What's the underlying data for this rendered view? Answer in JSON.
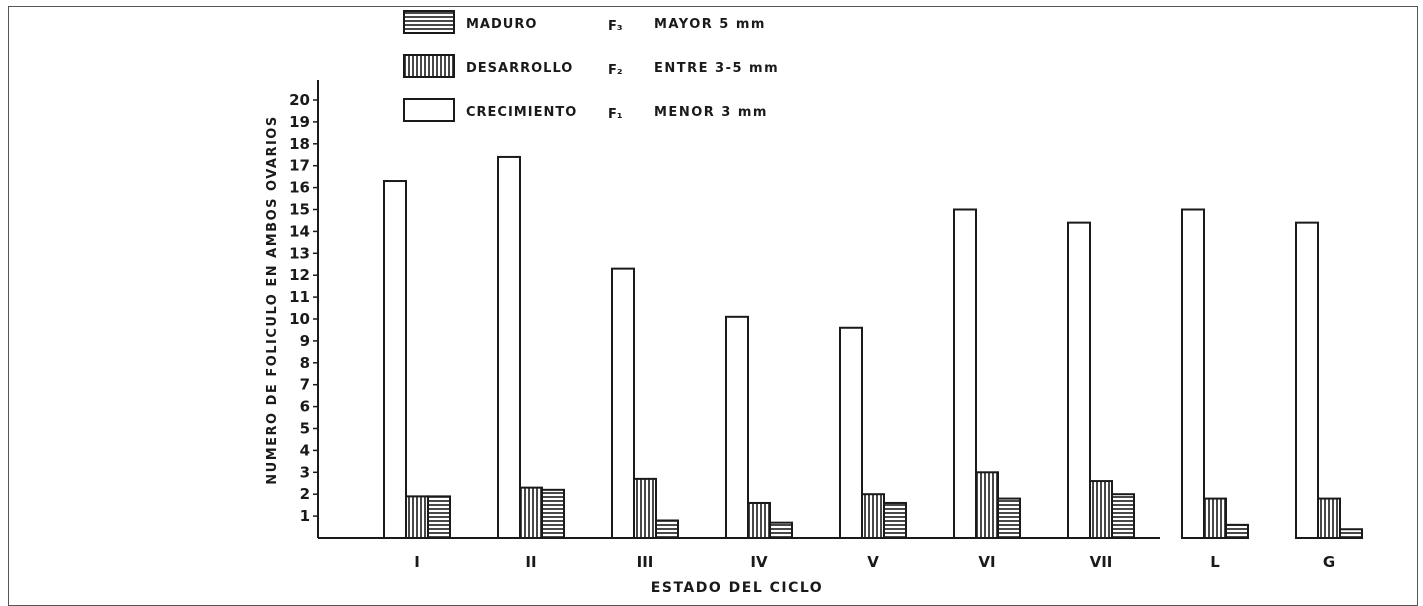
{
  "chart_data": {
    "type": "bar",
    "title": "",
    "xlabel": "ESTADO DEL CICLO",
    "ylabel": "NUMERO DE FOLICULO EN AMBOS OVARIOS",
    "categories": [
      "I",
      "II",
      "III",
      "IV",
      "V",
      "VI",
      "VII",
      "L",
      "G"
    ],
    "yticks": [
      1,
      2,
      3,
      4,
      5,
      6,
      7,
      8,
      9,
      10,
      11,
      12,
      13,
      14,
      15,
      16,
      17,
      18,
      19,
      20
    ],
    "ylim": [
      0,
      20
    ],
    "grid": false,
    "legend_position": "top",
    "series": [
      {
        "name": "CRECIMIENTO",
        "symbol": "F₁",
        "description": "MENOR 3 mm",
        "pattern": "plain",
        "values": [
          16.3,
          17.4,
          12.3,
          10.1,
          9.6,
          15.0,
          14.4,
          15.0,
          14.4
        ]
      },
      {
        "name": "DESARROLLO",
        "symbol": "F₂",
        "description": "ENTRE 3-5 mm",
        "pattern": "vertical",
        "values": [
          1.9,
          2.3,
          2.7,
          1.6,
          2.0,
          3.0,
          2.6,
          1.8,
          1.8
        ]
      },
      {
        "name": "MADURO",
        "symbol": "F₃",
        "description": "MAYOR 5 mm",
        "pattern": "horizontal",
        "values": [
          1.9,
          2.2,
          0.8,
          0.7,
          1.6,
          1.8,
          2.0,
          0.6,
          0.4
        ]
      }
    ]
  },
  "colors": {
    "ink": "#1a1a1a",
    "background": "#ffffff"
  }
}
